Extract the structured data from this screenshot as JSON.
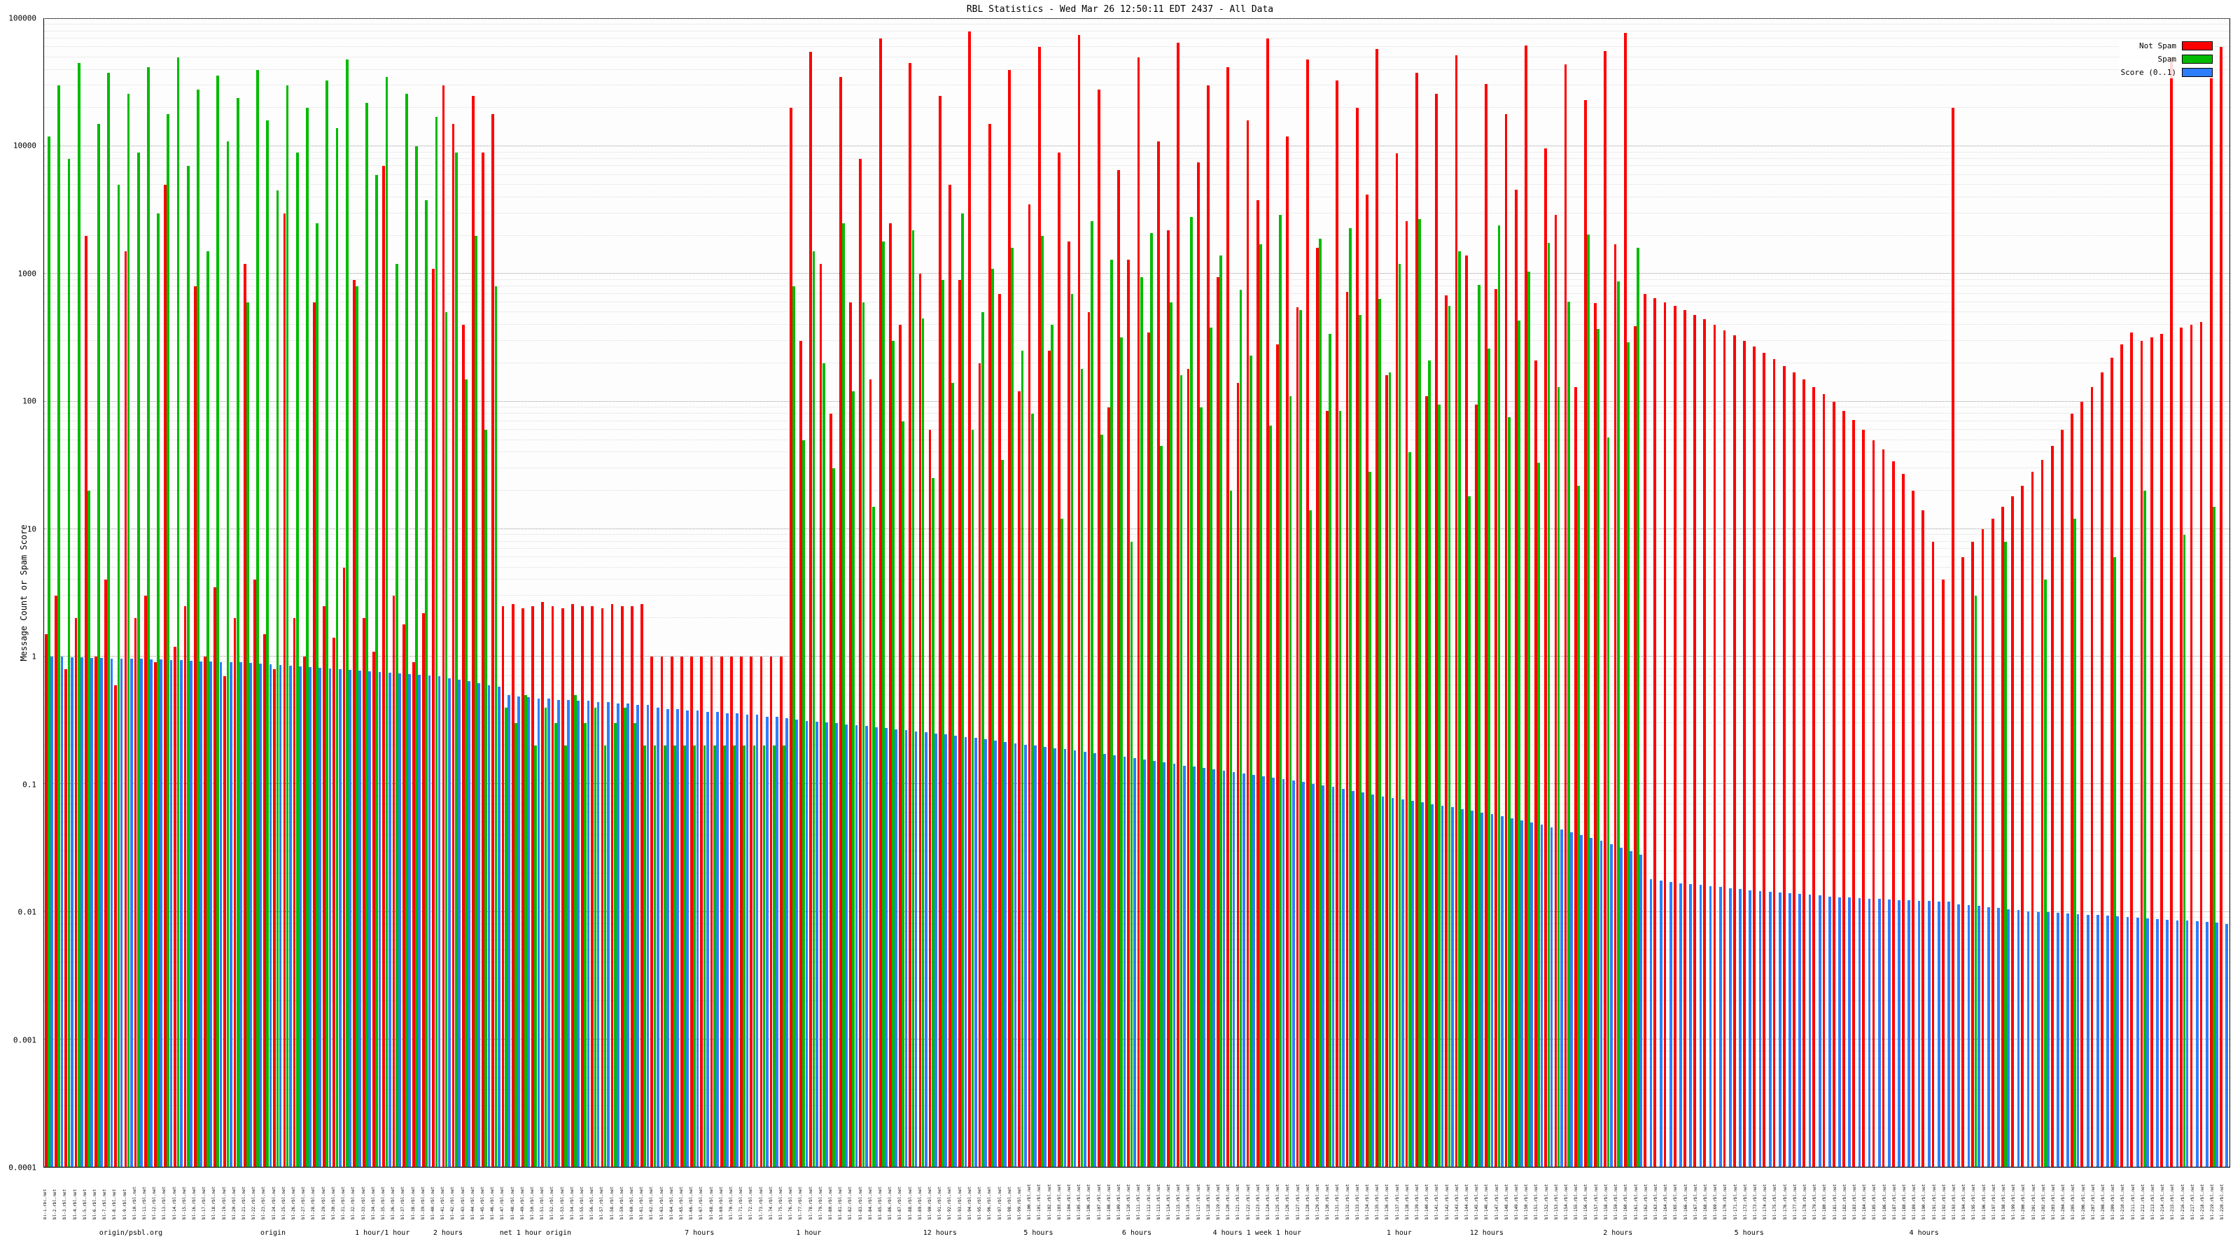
{
  "title": "RBL Statistics - Wed Mar 26 12:50:11 EDT 2437 - All Data",
  "y_axis": {
    "label": "Message Count or Spam Score",
    "scale": "log",
    "ticks": [
      "100000",
      "10000",
      "1000",
      "100",
      "10",
      "1",
      "0.1",
      "0.01",
      "0.001",
      "0.0001"
    ]
  },
  "x_axis": {
    "tick_labels_illegible": true,
    "group_labels": [
      {
        "pos": 0.04,
        "text": "origin/psbl.org"
      },
      {
        "pos": 0.105,
        "text": "origin"
      },
      {
        "pos": 0.155,
        "text": "1 hour/1 hour"
      },
      {
        "pos": 0.185,
        "text": "2 hours"
      },
      {
        "pos": 0.225,
        "text": "net 1 hour origin"
      },
      {
        "pos": 0.3,
        "text": "7 hours"
      },
      {
        "pos": 0.35,
        "text": "1 hour"
      },
      {
        "pos": 0.41,
        "text": "12 hours"
      },
      {
        "pos": 0.455,
        "text": "5 hours"
      },
      {
        "pos": 0.5,
        "text": "6 hours"
      },
      {
        "pos": 0.555,
        "text": "4 hours  1 week  1 hour"
      },
      {
        "pos": 0.62,
        "text": "1 hour"
      },
      {
        "pos": 0.66,
        "text": "12 hours"
      },
      {
        "pos": 0.72,
        "text": "2 hours"
      },
      {
        "pos": 0.78,
        "text": "5 hours"
      },
      {
        "pos": 0.86,
        "text": "4 hours"
      }
    ]
  },
  "legend": [
    {
      "label": "Not Spam",
      "color": "#ff0000"
    },
    {
      "label": "Spam",
      "color": "#00bb00"
    },
    {
      "label": "Score (0..1)",
      "color": "#2e7dff"
    }
  ],
  "chart_data": {
    "type": "bar",
    "title": "RBL Statistics - Wed Mar 26 12:50:11 EDT 2437 - All Data",
    "xlabel": "",
    "ylabel": "Message Count or Spam Score",
    "yscale": "log",
    "ylim": [
      0.0001,
      100000
    ],
    "grid": true,
    "legend_position": "top-right",
    "n_bars": 220,
    "series": [
      {
        "name": "Not Spam",
        "color": "#ff0000",
        "values": [
          1.5,
          3,
          0.8,
          2,
          2000,
          1,
          4,
          0.6,
          1500,
          2,
          3,
          0.9,
          5000,
          1.2,
          2.5,
          800,
          1,
          3.5,
          0.7,
          2,
          1200,
          4,
          1.5,
          0.8,
          3000,
          2,
          1,
          600,
          2.5,
          1.4,
          5,
          900,
          2,
          1.1,
          7000,
          3,
          1.8,
          0.9,
          2.2,
          1100,
          30000,
          15000,
          400,
          25000,
          9000,
          18000,
          2.5,
          2.6,
          2.4,
          2.5,
          2.7,
          2.5,
          2.4,
          2.6,
          2.5,
          2.5,
          2.4,
          2.6,
          2.5,
          2.5,
          2.6,
          1,
          1,
          1,
          1,
          1,
          1,
          1,
          1,
          1,
          1,
          1,
          1,
          1,
          1,
          20000,
          300,
          55000,
          1200,
          80,
          35000,
          600,
          8000,
          150,
          70000,
          2500,
          400,
          45000,
          1000,
          60,
          25000,
          5000,
          900,
          80000,
          200,
          15000,
          700,
          40000,
          120,
          3500,
          60000,
          250,
          9000,
          1800,
          75000,
          500,
          28000,
          90,
          6500,
          1300,
          50000,
          350,
          11000,
          2200,
          65000,
          180,
          7500,
          30000,
          950,
          42000,
          140,
          16000,
          3800,
          70000,
          280,
          12000,
          550,
          48000,
          1600,
          85,
          33000,
          720,
          20000,
          4200,
          58000,
          160,
          8800,
          2600,
          38000,
          110,
          26000,
          680,
          52000,
          1400,
          95,
          31000,
          760,
          18000,
          4600,
          62000,
          210,
          9600,
          2900,
          44000,
          130,
          23000,
          590,
          56000,
          1700,
          78000,
          390,
          700,
          650,
          600,
          560,
          520,
          480,
          440,
          400,
          360,
          330,
          300,
          270,
          240,
          215,
          190,
          170,
          150,
          130,
          115,
          100,
          85,
          72,
          60,
          50,
          42,
          34,
          27,
          20,
          14,
          8,
          4,
          20000,
          6,
          8,
          10,
          12,
          15,
          18,
          22,
          28,
          35,
          45,
          60,
          80,
          100,
          130,
          170,
          220,
          280,
          350,
          300,
          320,
          340,
          50000,
          380,
          400,
          420,
          35000,
          60000
        ]
      },
      {
        "name": "Spam",
        "color": "#00bb00",
        "values": [
          12000,
          30000,
          8000,
          45000,
          20,
          15000,
          38000,
          5000,
          26000,
          9000,
          42000,
          3000,
          18000,
          50000,
          7000,
          28000,
          1500,
          36000,
          11000,
          24000,
          600,
          40000,
          16000,
          4500,
          30000,
          9000,
          20000,
          2500,
          33000,
          14000,
          48000,
          800,
          22000,
          6000,
          35000,
          1200,
          26000,
          10000,
          3800,
          17000,
          500,
          9000,
          150,
          2000,
          60,
          800,
          0.4,
          0.3,
          0.5,
          0.2,
          0.4,
          0.3,
          0.2,
          0.5,
          0.3,
          0.4,
          0.2,
          0.3,
          0.4,
          0.3,
          0.2,
          0.2,
          0.2,
          0.2,
          0.2,
          0.2,
          0.2,
          0.2,
          0.2,
          0.2,
          0.2,
          0.2,
          0.2,
          0.2,
          0.2,
          800,
          50,
          1500,
          200,
          30,
          2500,
          120,
          600,
          15,
          1800,
          300,
          70,
          2200,
          450,
          25,
          900,
          140,
          3000,
          60,
          500,
          1100,
          35,
          1600,
          250,
          80,
          2000,
          400,
          12,
          700,
          180,
          2600,
          55,
          1300,
          320,
          8,
          950,
          2100,
          45,
          600,
          160,
          2800,
          90,
          380,
          1400,
          20,
          750,
          230,
          1700,
          65,
          2900,
          110,
          520,
          14,
          1900,
          340,
          85,
          2300,
          480,
          28,
          640,
          170,
          1200,
          40,
          2700,
          210,
          95,
          560,
          1500,
          18,
          820,
          260,
          2400,
          75,
          430,
          1050,
          33,
          1750,
          130,
          610,
          22,
          2050,
          370,
          52,
          880,
          290,
          1600,
          0,
          0,
          0,
          0,
          0,
          0,
          0,
          0,
          0,
          0,
          0,
          0,
          0,
          0,
          0,
          0,
          0,
          0,
          0,
          0,
          0,
          0,
          0,
          0,
          0,
          0,
          0,
          0,
          0,
          0,
          0,
          0,
          0,
          3,
          0,
          0,
          8,
          0,
          0,
          0,
          4,
          0,
          0,
          12,
          0,
          0,
          0,
          6,
          0,
          0,
          20,
          0,
          0,
          0,
          9,
          0,
          0,
          15,
          0
        ]
      },
      {
        "name": "Score (0..1)",
        "color": "#2e7dff",
        "values": [
          1.0,
          1.0,
          0.99,
          0.99,
          0.98,
          0.98,
          0.97,
          0.97,
          0.96,
          0.96,
          0.95,
          0.95,
          0.94,
          0.94,
          0.93,
          0.92,
          0.92,
          0.91,
          0.9,
          0.9,
          0.89,
          0.88,
          0.87,
          0.86,
          0.85,
          0.84,
          0.83,
          0.82,
          0.81,
          0.8,
          0.79,
          0.78,
          0.77,
          0.76,
          0.75,
          0.74,
          0.73,
          0.72,
          0.71,
          0.7,
          0.68,
          0.66,
          0.64,
          0.62,
          0.6,
          0.58,
          0.5,
          0.49,
          0.48,
          0.47,
          0.47,
          0.46,
          0.46,
          0.45,
          0.45,
          0.44,
          0.44,
          0.43,
          0.43,
          0.42,
          0.42,
          0.4,
          0.39,
          0.39,
          0.38,
          0.38,
          0.37,
          0.37,
          0.36,
          0.36,
          0.35,
          0.35,
          0.34,
          0.34,
          0.33,
          0.32,
          0.315,
          0.31,
          0.305,
          0.3,
          0.295,
          0.29,
          0.285,
          0.28,
          0.275,
          0.27,
          0.265,
          0.26,
          0.255,
          0.25,
          0.245,
          0.24,
          0.235,
          0.23,
          0.225,
          0.22,
          0.215,
          0.21,
          0.205,
          0.2,
          0.196,
          0.192,
          0.188,
          0.184,
          0.18,
          0.176,
          0.172,
          0.168,
          0.164,
          0.16,
          0.156,
          0.152,
          0.148,
          0.144,
          0.14,
          0.137,
          0.134,
          0.131,
          0.128,
          0.125,
          0.122,
          0.119,
          0.116,
          0.113,
          0.11,
          0.107,
          0.104,
          0.101,
          0.098,
          0.095,
          0.092,
          0.089,
          0.086,
          0.083,
          0.08,
          0.078,
          0.076,
          0.074,
          0.072,
          0.07,
          0.068,
          0.066,
          0.064,
          0.062,
          0.06,
          0.058,
          0.056,
          0.054,
          0.052,
          0.05,
          0.048,
          0.046,
          0.044,
          0.042,
          0.04,
          0.038,
          0.036,
          0.034,
          0.032,
          0.03,
          0.028,
          0.018,
          0.0176,
          0.0172,
          0.0168,
          0.0165,
          0.0162,
          0.0159,
          0.0156,
          0.0153,
          0.015,
          0.0148,
          0.0146,
          0.0144,
          0.0142,
          0.014,
          0.0138,
          0.0136,
          0.0134,
          0.0132,
          0.013,
          0.0129,
          0.0128,
          0.0127,
          0.0126,
          0.0125,
          0.0124,
          0.0123,
          0.0122,
          0.0121,
          0.012,
          0.012,
          0.0115,
          0.0113,
          0.0111,
          0.0109,
          0.0107,
          0.0105,
          0.0103,
          0.0101,
          0.01,
          0.0099,
          0.0098,
          0.0097,
          0.0096,
          0.0095,
          0.0094,
          0.0093,
          0.0092,
          0.0091,
          0.009,
          0.0089,
          0.0088,
          0.0087,
          0.0086,
          0.0085,
          0.0084,
          0.0083,
          0.0082,
          0.008
        ]
      }
    ]
  }
}
